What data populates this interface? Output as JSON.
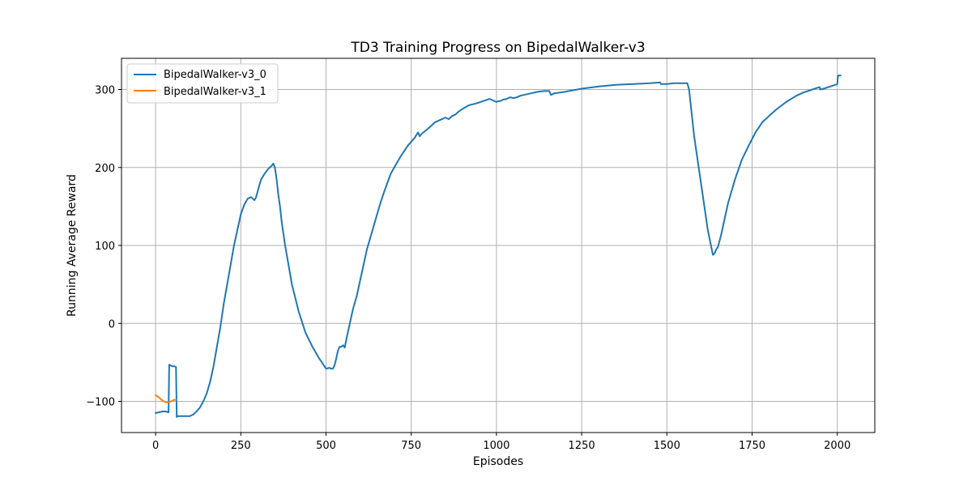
{
  "chart_data": {
    "type": "line",
    "title": "TD3 Training Progress on BipedalWalker-v3",
    "xlabel": "Episodes",
    "ylabel": "Running Average Reward",
    "xlim": [
      -100,
      2110
    ],
    "ylim": [
      -140,
      340
    ],
    "xticks": [
      0,
      250,
      500,
      750,
      1000,
      1250,
      1500,
      1750,
      2000
    ],
    "yticks": [
      -100,
      0,
      100,
      200,
      300
    ],
    "grid": true,
    "legend_position": "top-left",
    "series": [
      {
        "name": "BipedalWalker-v3_0",
        "color": "#1f77b4",
        "x": [
          0,
          10,
          20,
          30,
          38,
          40,
          44,
          50,
          55,
          60,
          62,
          65,
          80,
          100,
          110,
          120,
          130,
          140,
          150,
          160,
          170,
          180,
          190,
          200,
          210,
          220,
          230,
          240,
          250,
          260,
          270,
          280,
          290,
          295,
          300,
          305,
          310,
          320,
          330,
          340,
          345,
          350,
          355,
          360,
          365,
          370,
          380,
          390,
          400,
          420,
          440,
          460,
          480,
          500,
          510,
          515,
          520,
          525,
          530,
          535,
          540,
          545,
          550,
          555,
          560,
          565,
          570,
          575,
          580,
          590,
          600,
          610,
          620,
          630,
          640,
          650,
          660,
          670,
          680,
          690,
          700,
          720,
          740,
          760,
          770,
          775,
          780,
          800,
          820,
          840,
          850,
          860,
          870,
          880,
          890,
          900,
          920,
          940,
          960,
          980,
          1000,
          1005,
          1010,
          1020,
          1030,
          1040,
          1050,
          1060,
          1070,
          1080,
          1100,
          1120,
          1140,
          1155,
          1160,
          1170,
          1200,
          1250,
          1300,
          1350,
          1400,
          1450,
          1480,
          1483,
          1500,
          1520,
          1540,
          1560,
          1565,
          1580,
          1600,
          1620,
          1635,
          1640,
          1645,
          1650,
          1660,
          1670,
          1680,
          1700,
          1720,
          1740,
          1760,
          1780,
          1800,
          1820,
          1850,
          1880,
          1900,
          1920,
          1940,
          1948,
          1950,
          1960,
          1980,
          2000,
          2002,
          2005,
          2010
        ],
        "values": [
          -115,
          -114,
          -113,
          -113,
          -114,
          -53,
          -54,
          -55,
          -55,
          -56,
          -120,
          -119,
          -119,
          -119,
          -117,
          -113,
          -108,
          -100,
          -90,
          -75,
          -55,
          -30,
          -5,
          25,
          50,
          75,
          100,
          120,
          140,
          152,
          160,
          162,
          158,
          162,
          170,
          178,
          185,
          192,
          198,
          202,
          205,
          200,
          185,
          165,
          150,
          130,
          100,
          75,
          50,
          15,
          -12,
          -30,
          -45,
          -58,
          -57,
          -58,
          -58,
          -54,
          -45,
          -35,
          -30,
          -30,
          -28,
          -31,
          -20,
          -10,
          0,
          10,
          20,
          35,
          55,
          75,
          95,
          110,
          125,
          140,
          155,
          168,
          180,
          192,
          200,
          215,
          228,
          238,
          245,
          240,
          243,
          250,
          258,
          262,
          264,
          262,
          266,
          268,
          272,
          275,
          280,
          282,
          285,
          288,
          284,
          285,
          285,
          287,
          288,
          290,
          289,
          290,
          292,
          293,
          295,
          297,
          298,
          298,
          293,
          295,
          297,
          301,
          304,
          306,
          307,
          308,
          309,
          307,
          307,
          308,
          308,
          308,
          300,
          240,
          180,
          120,
          88,
          90,
          95,
          98,
          115,
          135,
          155,
          185,
          210,
          228,
          245,
          258,
          266,
          274,
          284,
          292,
          296,
          299,
          302,
          303,
          300,
          301,
          304,
          307,
          318,
          318,
          318
        ]
      },
      {
        "name": "BipedalWalker-v3_1",
        "color": "#ff7f0e",
        "x": [
          0,
          10,
          20,
          30,
          40,
          45,
          50,
          55,
          60
        ],
        "values": [
          -92,
          -95,
          -99,
          -101,
          -101,
          -100,
          -99,
          -98,
          -98
        ]
      }
    ]
  }
}
